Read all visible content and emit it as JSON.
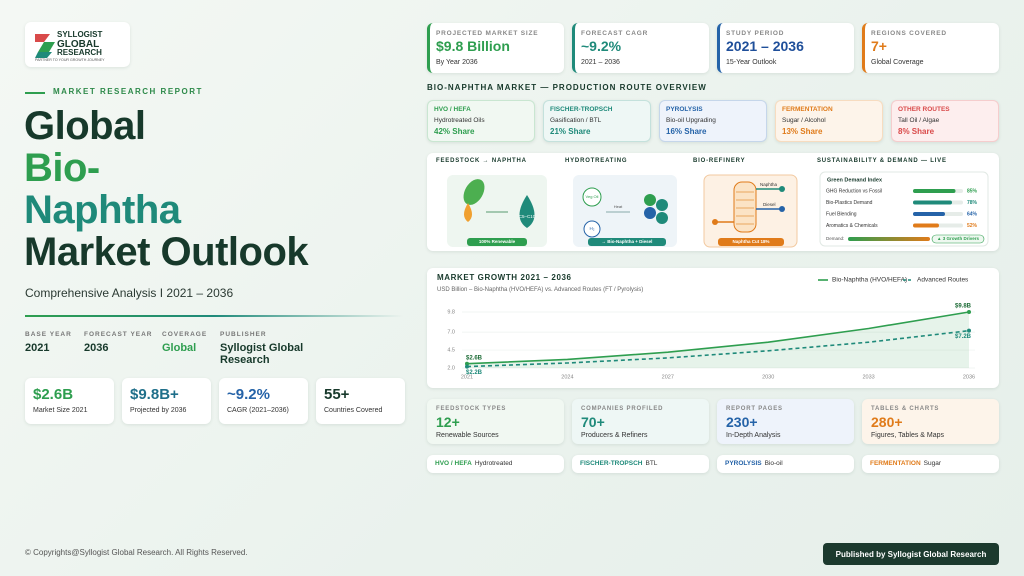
{
  "logo": {
    "name_line1": "SYLLOGIST",
    "name_line2": "GLOBAL",
    "name_line3": "RESEARCH",
    "tagline": "PARTNER TO YOUR GROWTH JOURNEY"
  },
  "hero": {
    "kicker": "MARKET RESEARCH REPORT",
    "title_lines": [
      "Global",
      "Bio-",
      "Naphtha",
      "Market Outlook"
    ],
    "subtitle": "Comprehensive Analysis I 2021 – 2036"
  },
  "meta": [
    {
      "label": "BASE YEAR",
      "value": "2021"
    },
    {
      "label": "FORECAST YEAR",
      "value": "2036"
    },
    {
      "label": "COVERAGE",
      "value": "Global"
    },
    {
      "label": "PUBLISHER",
      "value": "Syllogist Global Research"
    }
  ],
  "stats": [
    {
      "value": "$2.6B",
      "label": "Market Size 2021"
    },
    {
      "value": "$9.8B+",
      "label": "Projected by 2036"
    },
    {
      "value": "~9.2%",
      "label": "CAGR (2021–2036)"
    },
    {
      "value": "55+",
      "label": "Countries Covered"
    }
  ],
  "kpis": [
    {
      "label": "PROJECTED MARKET SIZE",
      "value": "$9.8 Billion",
      "note": "By Year 2036"
    },
    {
      "label": "FORECAST CAGR",
      "value": "~9.2%",
      "note": "2021 – 2036"
    },
    {
      "label": "STUDY PERIOD",
      "value": "2021 – 2036",
      "note": "15-Year Outlook"
    },
    {
      "label": "REGIONS COVERED",
      "value": "7+",
      "note": "Global Coverage"
    }
  ],
  "section_title": "BIO-NAPHTHA MARKET — PRODUCTION ROUTE OVERVIEW",
  "routes": [
    {
      "name": "HVO / HEFA",
      "process": "Hydrotreated Oils",
      "share": "42% Share"
    },
    {
      "name": "FISCHER-TROPSCH",
      "process": "Gasification / BTL",
      "share": "21% Share"
    },
    {
      "name": "PYROLYSIS",
      "process": "Bio-oil Upgrading",
      "share": "16% Share"
    },
    {
      "name": "FERMENTATION",
      "process": "Sugar / Alcohol",
      "share": "13% Share"
    },
    {
      "name": "OTHER ROUTES",
      "process": "Tall Oil / Algae",
      "share": "8% Share"
    }
  ],
  "process": {
    "steps": [
      {
        "title": "FEEDSTOCK → NAPHTHA",
        "badge": "100% Renewable",
        "tags": [
          "C5–C10"
        ]
      },
      {
        "title": "HYDROTREATING",
        "badge": "→ Bio-Naphtha + Diesel",
        "tags": [
          "Veg Oil",
          "H₂",
          "Heat"
        ]
      },
      {
        "title": "BIO-REFINERY",
        "badge": "Naphtha Cut 18%",
        "tags": [
          "Naphtha",
          "Diesel"
        ]
      }
    ],
    "demand_title": "SUSTAINABILITY & DEMAND — LIVE"
  },
  "demand_index": {
    "title": "Green Demand Index",
    "items": [
      {
        "name": "GHG Reduction vs Fossil",
        "value": 85,
        "value_label": "85%"
      },
      {
        "name": "Bio-Plastics Demand",
        "value": 78,
        "value_label": "78%"
      },
      {
        "name": "Fuel Blending",
        "value": 64,
        "value_label": "64%"
      },
      {
        "name": "Aromatics & Chemicals",
        "value": 52,
        "value_label": "52%"
      }
    ],
    "demand_label": "Demand:",
    "drivers": "▲ 3 Growth Drivers"
  },
  "chart_data": {
    "type": "line",
    "title": "MARKET GROWTH 2021 – 2036",
    "subtitle": "USD Billion – Bio-Naphtha (HVO/HEFA) vs. Advanced Routes (FT / Pyrolysis)",
    "x": [
      2021,
      2024,
      2027,
      2030,
      2033,
      2036
    ],
    "xlim": [
      2021,
      2036
    ],
    "xticks": [
      2021,
      2024,
      2027,
      2030,
      2033,
      2036
    ],
    "ylim": [
      2,
      9.8
    ],
    "yticks": [
      {
        "value": 2,
        "label": "2.0"
      },
      4.5,
      {
        "value": 7,
        "label": "7.0"
      },
      9.8
    ],
    "grid": true,
    "legend": "top-right",
    "series": [
      {
        "name": "Bio-Naphtha (HVO/HEFA)",
        "color": "#2e9e4f",
        "style": "solid",
        "values": [
          2.6,
          3.2,
          4.2,
          5.6,
          7.5,
          9.8
        ],
        "value_labels": [
          "$2.6B",
          null,
          null,
          null,
          null,
          "$9.8B"
        ]
      },
      {
        "name": "Advanced Routes",
        "color": "#1f8a7a",
        "style": "dashed",
        "values": [
          2.2,
          2.7,
          3.4,
          4.4,
          5.6,
          7.2
        ],
        "value_labels": [
          "$2.2B",
          null,
          null,
          null,
          null,
          "$7.2B"
        ]
      }
    ]
  },
  "summary_cards": [
    {
      "label": "FEEDSTOCK TYPES",
      "value": "12+",
      "note": "Renewable Sources"
    },
    {
      "label": "COMPANIES PROFILED",
      "value": "70+",
      "note": "Producers & Refiners"
    },
    {
      "label": "REPORT PAGES",
      "value": "230+",
      "note": "In-Depth Analysis"
    },
    {
      "label": "TABLES & CHARTS",
      "value": "280+",
      "note": "Figures, Tables & Maps"
    }
  ],
  "route_tags": [
    {
      "name": "HVO / HEFA",
      "text": "Hydrotreated"
    },
    {
      "name": "FISCHER-TROPSCH",
      "text": "BTL"
    },
    {
      "name": "PYROLYSIS",
      "text": "Bio-oil"
    },
    {
      "name": "FERMENTATION",
      "text": "Sugar"
    }
  ],
  "footer": {
    "copyright": "© Copyrights@Syllogist Global Research. All Rights Reserved.",
    "publisher_button": "Published by Syllogist Global Research"
  }
}
